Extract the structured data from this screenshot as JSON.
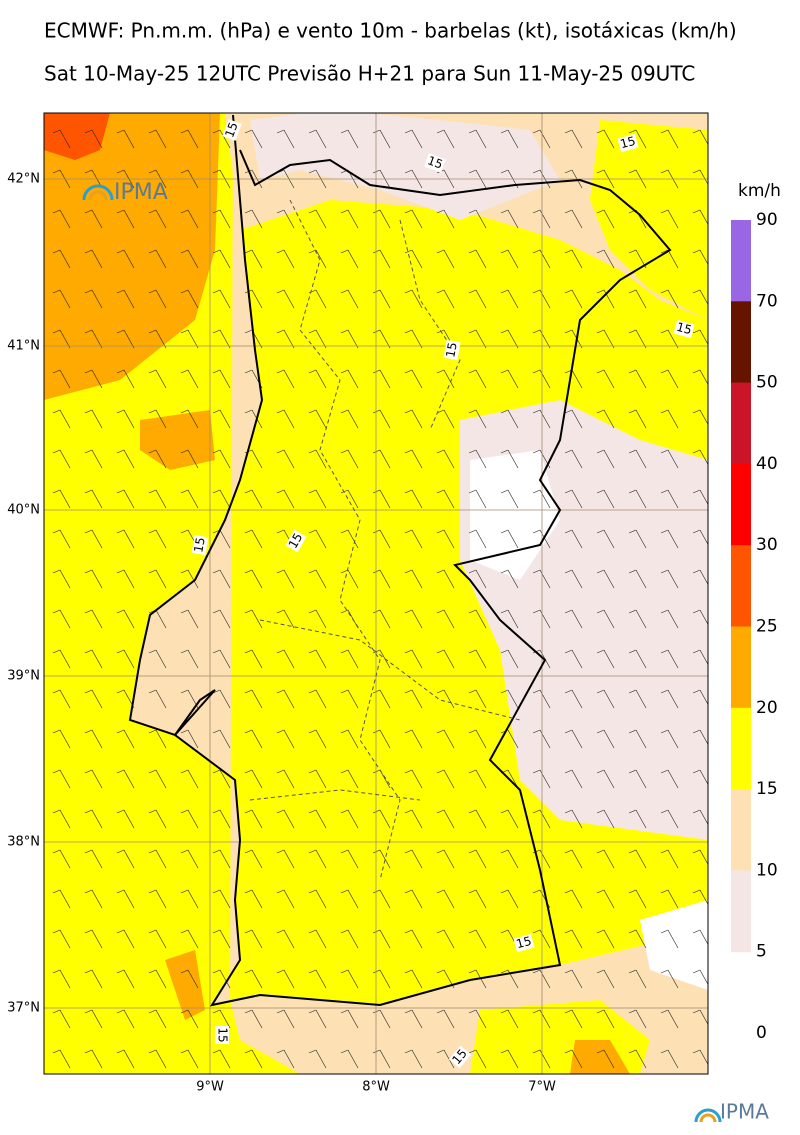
{
  "header": {
    "title": "ECMWF: Pn.m.m. (hPa) e vento 10m - barbelas (kt), isotáxicas (km/h)",
    "subtitle": "Sat 10-May-25 12UTC Previsão H+21 para Sun 11-May-25 09UTC"
  },
  "map": {
    "lat_labels": [
      "42°N",
      "41°N",
      "40°N",
      "39°N",
      "38°N",
      "37°N"
    ],
    "lon_labels": [
      "9°W",
      "8°W",
      "7°W"
    ],
    "contour_labels": [
      "15",
      "15",
      "15",
      "15",
      "15",
      "15",
      "15",
      "15",
      "15",
      "15"
    ],
    "logo": "IPMA"
  },
  "colorbar": {
    "unit": "km/h",
    "labels": [
      "90",
      "70",
      "50",
      "40",
      "30",
      "25",
      "20",
      "15",
      "10",
      "5",
      "0"
    ],
    "colors": [
      "#9966e6",
      "#661400",
      "#cc1428",
      "#ff0000",
      "#ff5500",
      "#ffaa00",
      "#ffff00",
      "#fde0b4",
      "#f5e6e6"
    ]
  },
  "footer": {
    "logo": "IPMA"
  }
}
